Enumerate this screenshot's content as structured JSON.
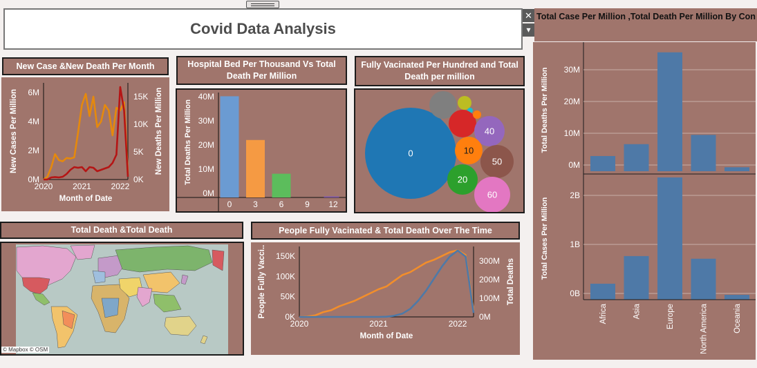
{
  "header": {
    "title": "Covid Data Analysis",
    "close_glyph": "✕",
    "menu_glyph": "▾"
  },
  "panels": {
    "monthly": {
      "title": "New Case &New Death Per Month"
    },
    "beds": {
      "title": "Hospital Bed Per Thousand Vs Total Death Per Million"
    },
    "vaccinated": {
      "title": "Fully Vacinated Per Hundred and Total Death per million"
    },
    "map": {
      "title": "Total Death &Total Death",
      "attribution": "© Mapbox © OSM"
    },
    "overtime": {
      "title": "People Fully Vacinated & Total Death Over The Time"
    },
    "continent": {
      "title": "Total Case Per Million ,Total Death Per Million By Con"
    }
  },
  "chart_data": [
    {
      "id": "monthly",
      "type": "line",
      "xlabel": "Month of Date",
      "ylabel": "New Cases Per Million",
      "ylabel2": "New Deaths Per Million",
      "xticks": [
        "2020",
        "2021",
        "2022"
      ],
      "yticks": [
        "0M",
        "2M",
        "4M",
        "6M"
      ],
      "yticks2": [
        "0K",
        "5K",
        "10K",
        "15K"
      ],
      "ylim": [
        0,
        7000000
      ],
      "ylim2": [
        0,
        17500
      ],
      "x": [
        2020.0,
        2020.1,
        2020.2,
        2020.3,
        2020.4,
        2020.5,
        2020.6,
        2020.7,
        2020.8,
        2020.9,
        2021.0,
        2021.1,
        2021.2,
        2021.3,
        2021.4,
        2021.5,
        2021.6,
        2021.7,
        2021.8,
        2021.9,
        2022.0,
        2022.1,
        2022.2
      ],
      "series": [
        {
          "color": "#e6890c",
          "axis": "right",
          "values": [
            0,
            500,
            2200,
            4600,
            3500,
            3300,
            3900,
            3800,
            4000,
            8500,
            13500,
            15500,
            11500,
            15000,
            9500,
            10500,
            13500,
            12500,
            8000,
            13000,
            12500,
            14000,
            1000
          ]
        },
        {
          "color": "#b51515",
          "axis": "left",
          "values": [
            0,
            0,
            150000,
            180000,
            150000,
            200000,
            400000,
            700000,
            900000,
            850000,
            900000,
            600000,
            900000,
            850000,
            600000,
            700000,
            800000,
            900000,
            1200000,
            1800000,
            6700000,
            5000000,
            200000
          ]
        }
      ]
    },
    {
      "id": "beds",
      "type": "bar",
      "ylabel": "Total Deaths Per Million",
      "categories": [
        "0",
        "3",
        "6",
        "9",
        "12"
      ],
      "yticks": [
        "0M",
        "10M",
        "20M",
        "30M",
        "40M"
      ],
      "ylim": [
        0,
        42000000
      ],
      "values": [
        40500000,
        23000000,
        9500000,
        0,
        400000
      ],
      "colors": [
        "#6b9bd2",
        "#f59a43",
        "#5cbd5c",
        "#6b9bd2",
        "#7b56b4"
      ]
    },
    {
      "id": "vaccinated",
      "type": "bubble",
      "bubbles": [
        {
          "label": "0",
          "color": "#1f77b4"
        },
        {
          "label": "",
          "color": "#7f7f7f"
        },
        {
          "label": "",
          "color": "#bcbd22"
        },
        {
          "label": "",
          "color": "#17becf"
        },
        {
          "label": "",
          "color": "#d62728"
        },
        {
          "label": "",
          "color": "#ff7f0e"
        },
        {
          "label": "40",
          "color": "#9467bd"
        },
        {
          "label": "10",
          "color": "#ff7f0e"
        },
        {
          "label": "50",
          "color": "#8c564b"
        },
        {
          "label": "20",
          "color": "#2ca02c"
        },
        {
          "label": "60",
          "color": "#e377c2"
        }
      ]
    },
    {
      "id": "overtime",
      "type": "line",
      "xlabel": "Month of Date",
      "ylabel": "People Fully Vacci..",
      "ylabel2": "Total Deaths",
      "xticks": [
        "2020",
        "2021",
        "2022"
      ],
      "yticks": [
        "0K",
        "50K",
        "100K",
        "150K"
      ],
      "yticks2": [
        "0M",
        "100M",
        "200M",
        "300M"
      ],
      "ylim": [
        0,
        175000
      ],
      "ylim2": [
        0,
        370000000
      ],
      "x": [
        2020.0,
        2020.1,
        2020.2,
        2020.3,
        2020.4,
        2020.5,
        2020.6,
        2020.7,
        2020.8,
        2020.9,
        2021.0,
        2021.1,
        2021.2,
        2021.3,
        2021.4,
        2021.5,
        2021.6,
        2021.7,
        2021.8,
        2021.9,
        2022.0,
        2022.1,
        2022.2
      ],
      "series": [
        {
          "color": "#f28e2b",
          "axis": "right",
          "values": [
            0,
            2000000,
            8000000,
            25000000,
            35000000,
            55000000,
            70000000,
            85000000,
            105000000,
            125000000,
            145000000,
            160000000,
            190000000,
            220000000,
            235000000,
            260000000,
            285000000,
            300000000,
            320000000,
            340000000,
            350000000,
            325000000,
            35000000
          ]
        },
        {
          "color": "#4e79a7",
          "axis": "left",
          "values": [
            0,
            0,
            0,
            0,
            0,
            0,
            0,
            0,
            0,
            0,
            0,
            500,
            3000,
            8000,
            20000,
            40000,
            65000,
            95000,
            125000,
            150000,
            165000,
            150000,
            10000
          ]
        }
      ]
    },
    {
      "id": "continent",
      "type": "bar",
      "categories": [
        "Africa",
        "Asia",
        "Europe",
        "North America",
        "Oceania"
      ],
      "color": "#4e79a7",
      "panels": [
        {
          "ylabel": "Total Deaths Per Million",
          "yticks": [
            "0M",
            "10M",
            "20M",
            "30M"
          ],
          "ylim": [
            0,
            37000000
          ],
          "values": [
            4600000,
            8200000,
            36000000,
            11000000,
            1200000
          ]
        },
        {
          "ylabel": "Total Cases Per Million",
          "yticks": [
            "0B",
            "1B",
            "2B"
          ],
          "ylim": [
            0,
            2300000000
          ],
          "values": [
            300000000,
            820000000,
            2300000000,
            770000000,
            90000000
          ]
        }
      ]
    }
  ]
}
